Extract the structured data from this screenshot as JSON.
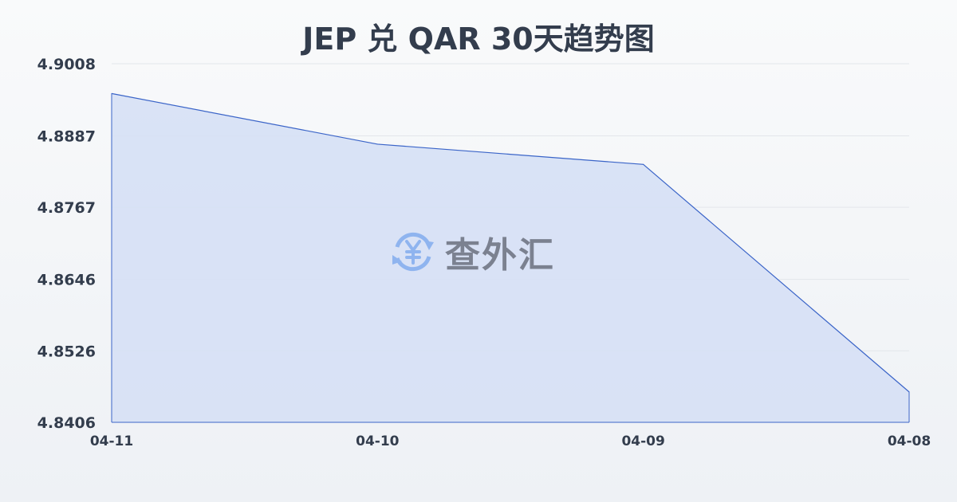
{
  "chart_data": {
    "type": "area",
    "title": "JEP 兑 QAR 30天趋势图",
    "xlabel": "",
    "ylabel": "",
    "categories": [
      "04-11",
      "04-10",
      "04-09",
      "04-08"
    ],
    "values": [
      4.8958,
      4.8873,
      4.8839,
      4.8457
    ],
    "ylim": [
      4.8406,
      4.9008
    ],
    "yticks": [
      "4.9008",
      "4.8887",
      "4.8767",
      "4.8646",
      "4.8526",
      "4.8406"
    ],
    "grid": true,
    "colors": {
      "line": "#3a64c8",
      "fill": "#d6e0f5",
      "grid": "#e3e6ea",
      "text": "#333d4d"
    }
  },
  "watermark": {
    "text": "查外汇",
    "icon": "yuan-exchange-icon",
    "icon_color": "#8fb4ef"
  }
}
